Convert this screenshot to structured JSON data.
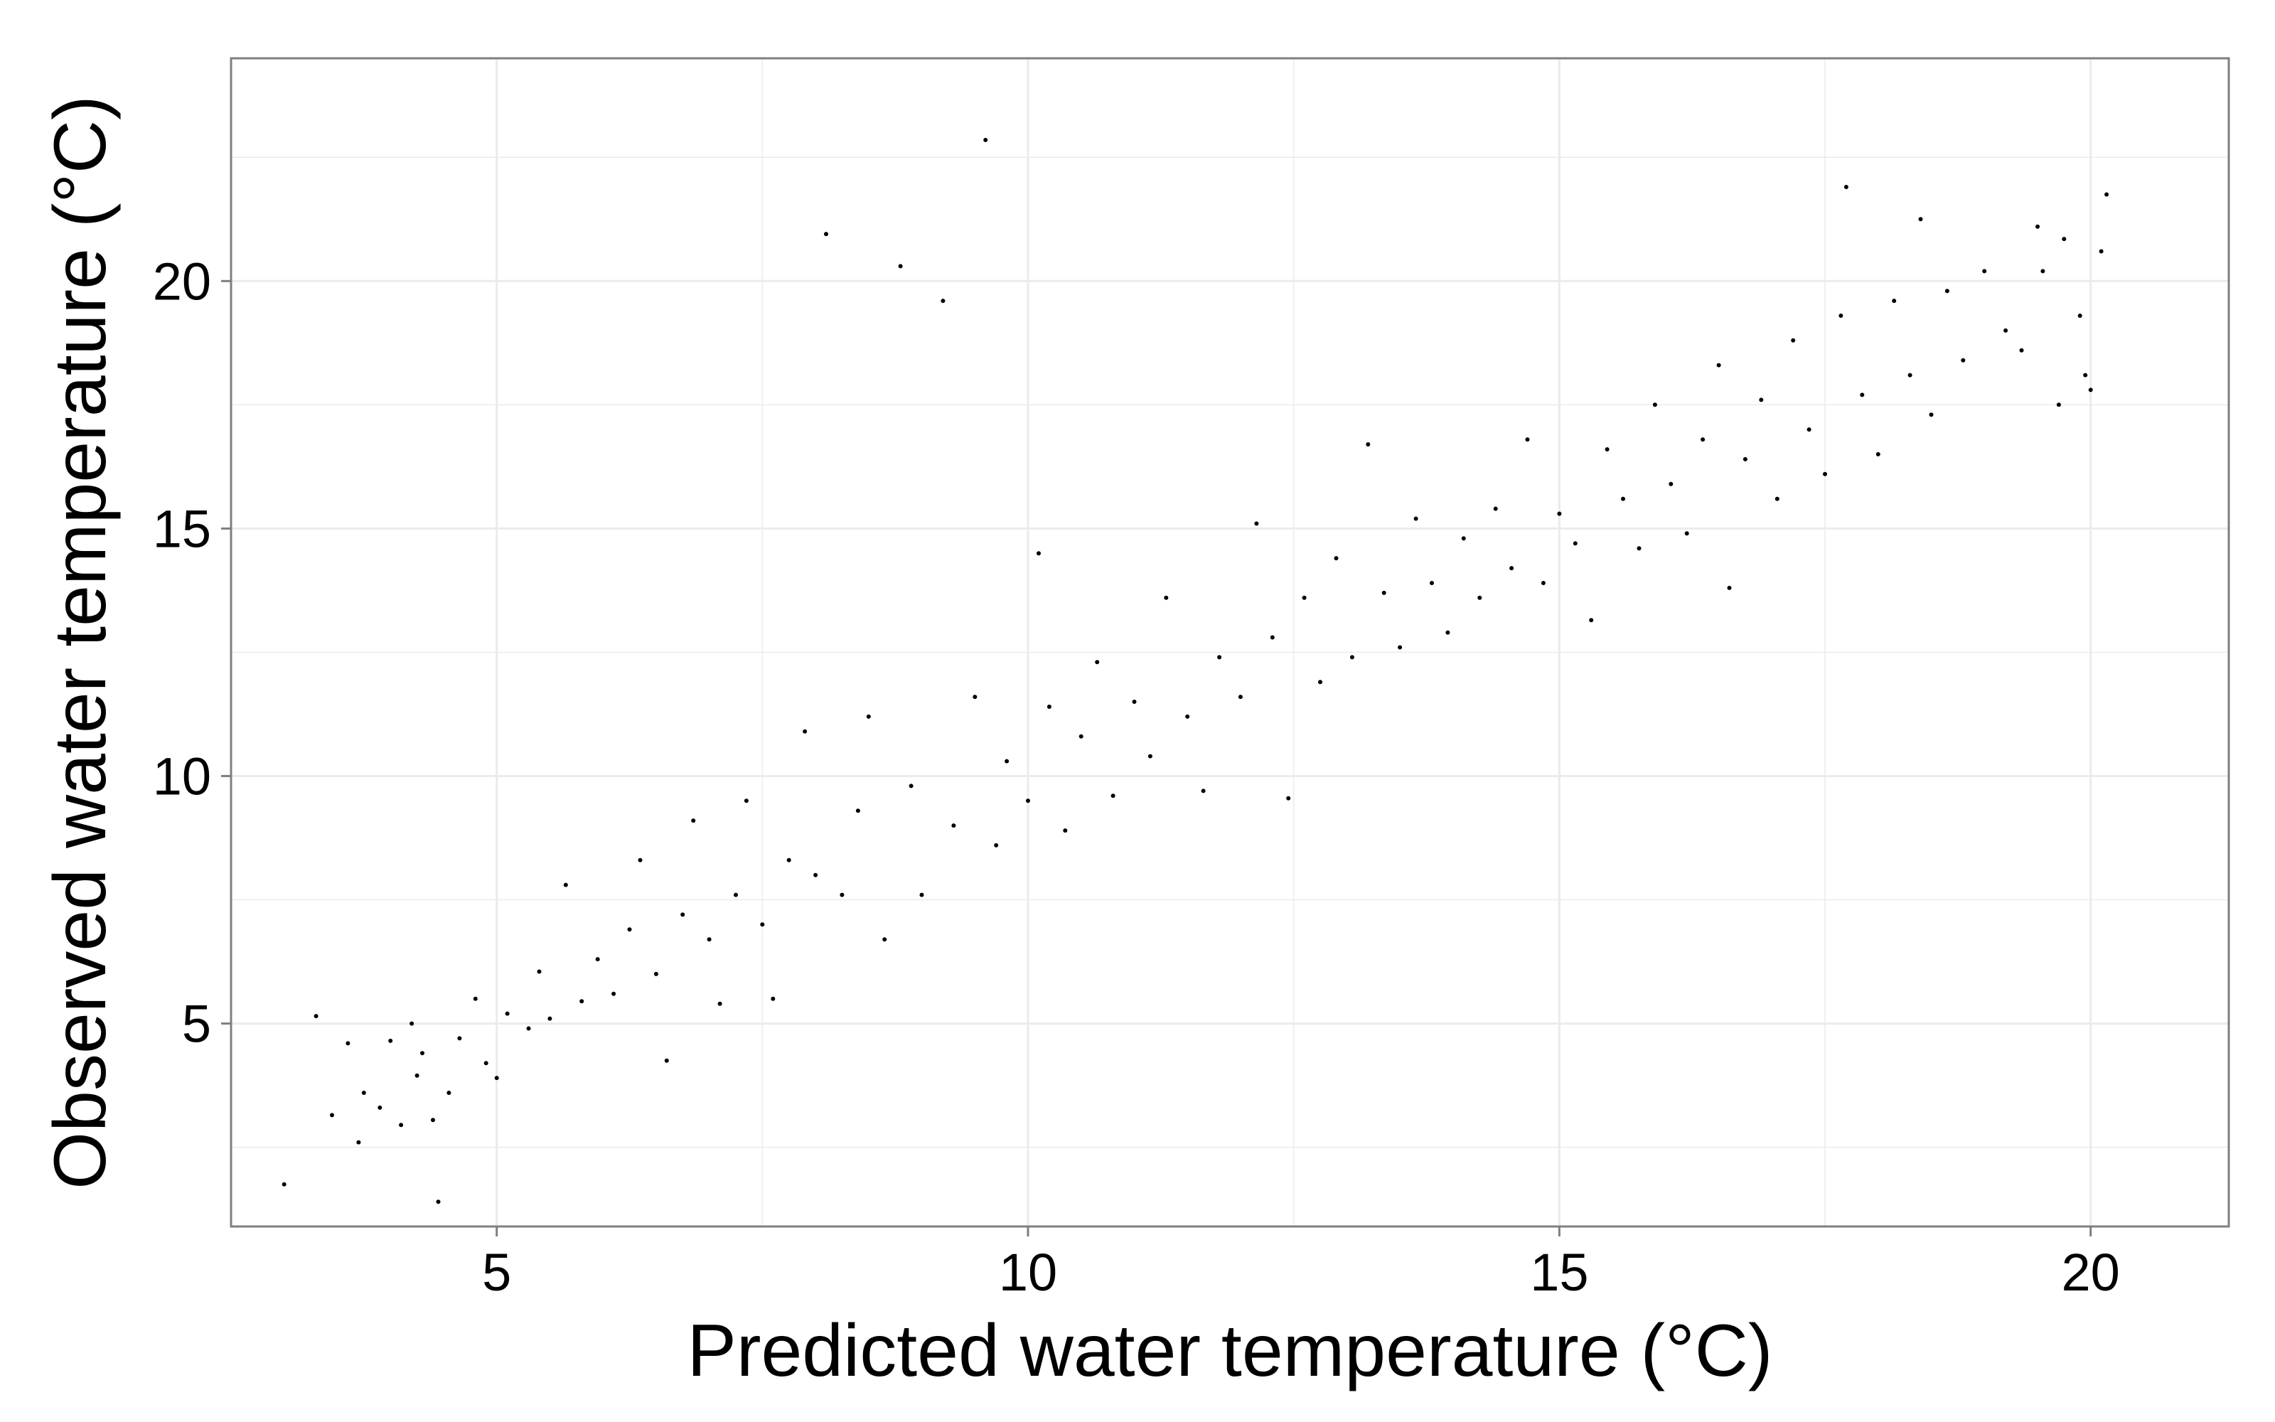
{
  "chart_data": {
    "type": "scatter",
    "title": "",
    "xlabel": "Predicted water temperature (°C)",
    "ylabel": "Observed water temperature (°C)",
    "xlim": [
      2.5,
      21.3
    ],
    "ylim": [
      0.9,
      24.5
    ],
    "x_ticks": [
      5,
      10,
      15,
      20
    ],
    "y_ticks": [
      5,
      10,
      15,
      20
    ],
    "x_tick_labels": [
      "5",
      "10",
      "15",
      "20"
    ],
    "y_tick_labels": [
      "5",
      "10",
      "15",
      "20"
    ],
    "grid": true,
    "legend": "none",
    "colors": {
      "points": "#000000",
      "panel_border": "#7f7f7f",
      "grid": "#ebebeb"
    },
    "series": [
      {
        "points": [
          [
            3.0,
            1.75
          ],
          [
            3.3,
            5.15
          ],
          [
            3.45,
            3.15
          ],
          [
            3.6,
            4.6
          ],
          [
            3.7,
            2.6
          ],
          [
            3.75,
            3.6
          ],
          [
            3.9,
            3.3
          ],
          [
            4.0,
            4.65
          ],
          [
            4.1,
            2.95
          ],
          [
            4.2,
            5.0
          ],
          [
            4.25,
            3.95
          ],
          [
            4.3,
            4.4
          ],
          [
            4.4,
            3.05
          ],
          [
            4.45,
            1.4
          ],
          [
            4.55,
            3.6
          ],
          [
            4.65,
            4.7
          ],
          [
            4.8,
            5.5
          ],
          [
            4.9,
            4.2
          ],
          [
            5.0,
            3.9
          ],
          [
            5.1,
            5.2
          ],
          [
            5.3,
            4.9
          ],
          [
            5.4,
            6.05
          ],
          [
            5.5,
            5.1
          ],
          [
            5.65,
            7.8
          ],
          [
            5.8,
            5.45
          ],
          [
            5.95,
            6.3
          ],
          [
            6.1,
            5.6
          ],
          [
            6.25,
            6.9
          ],
          [
            6.35,
            8.3
          ],
          [
            6.5,
            6.0
          ],
          [
            6.6,
            4.25
          ],
          [
            6.75,
            7.2
          ],
          [
            6.85,
            9.1
          ],
          [
            7.0,
            6.7
          ],
          [
            7.1,
            5.4
          ],
          [
            7.25,
            7.6
          ],
          [
            7.35,
            9.5
          ],
          [
            7.5,
            7.0
          ],
          [
            7.6,
            5.5
          ],
          [
            7.75,
            8.3
          ],
          [
            7.9,
            10.9
          ],
          [
            8.0,
            8.0
          ],
          [
            8.1,
            20.95
          ],
          [
            8.25,
            7.6
          ],
          [
            8.4,
            9.3
          ],
          [
            8.5,
            11.2
          ],
          [
            8.65,
            6.7
          ],
          [
            8.8,
            20.3
          ],
          [
            8.9,
            9.8
          ],
          [
            9.0,
            7.6
          ],
          [
            9.2,
            19.6
          ],
          [
            9.3,
            9.0
          ],
          [
            9.5,
            11.6
          ],
          [
            9.6,
            22.85
          ],
          [
            9.7,
            8.6
          ],
          [
            9.8,
            10.3
          ],
          [
            10.0,
            9.5
          ],
          [
            10.1,
            14.5
          ],
          [
            10.2,
            11.4
          ],
          [
            10.35,
            8.9
          ],
          [
            10.5,
            10.8
          ],
          [
            10.65,
            12.3
          ],
          [
            10.8,
            9.6
          ],
          [
            11.0,
            11.5
          ],
          [
            11.15,
            10.4
          ],
          [
            11.3,
            13.6
          ],
          [
            11.5,
            11.2
          ],
          [
            11.65,
            9.7
          ],
          [
            11.8,
            12.4
          ],
          [
            12.0,
            11.6
          ],
          [
            12.15,
            15.1
          ],
          [
            12.3,
            12.8
          ],
          [
            12.45,
            9.55
          ],
          [
            12.6,
            13.6
          ],
          [
            12.75,
            11.9
          ],
          [
            12.9,
            14.4
          ],
          [
            13.05,
            12.4
          ],
          [
            13.2,
            16.7
          ],
          [
            13.35,
            13.7
          ],
          [
            13.5,
            12.6
          ],
          [
            13.65,
            15.2
          ],
          [
            13.8,
            13.9
          ],
          [
            13.95,
            12.9
          ],
          [
            14.1,
            14.8
          ],
          [
            14.25,
            13.6
          ],
          [
            14.4,
            15.4
          ],
          [
            14.55,
            14.2
          ],
          [
            14.7,
            16.8
          ],
          [
            14.85,
            13.9
          ],
          [
            15.0,
            15.3
          ],
          [
            15.15,
            14.7
          ],
          [
            15.3,
            13.15
          ],
          [
            15.45,
            16.6
          ],
          [
            15.6,
            15.6
          ],
          [
            15.75,
            14.6
          ],
          [
            15.9,
            17.5
          ],
          [
            16.05,
            15.9
          ],
          [
            16.2,
            14.9
          ],
          [
            16.35,
            16.8
          ],
          [
            16.5,
            18.3
          ],
          [
            16.6,
            13.8
          ],
          [
            16.75,
            16.4
          ],
          [
            16.9,
            17.6
          ],
          [
            17.05,
            15.6
          ],
          [
            17.2,
            18.8
          ],
          [
            17.35,
            17.0
          ],
          [
            17.5,
            16.1
          ],
          [
            17.65,
            19.3
          ],
          [
            17.7,
            21.9
          ],
          [
            17.85,
            17.7
          ],
          [
            18.0,
            16.5
          ],
          [
            18.15,
            19.6
          ],
          [
            18.3,
            18.1
          ],
          [
            18.4,
            21.25
          ],
          [
            18.5,
            17.3
          ],
          [
            18.65,
            19.8
          ],
          [
            18.8,
            18.4
          ],
          [
            19.0,
            20.2
          ],
          [
            19.2,
            19.0
          ],
          [
            19.35,
            18.6
          ],
          [
            19.5,
            21.1
          ],
          [
            19.55,
            20.2
          ],
          [
            19.7,
            17.5
          ],
          [
            19.75,
            20.85
          ],
          [
            19.9,
            19.3
          ],
          [
            19.95,
            18.1
          ],
          [
            20.0,
            17.8
          ],
          [
            20.1,
            20.6
          ],
          [
            20.15,
            21.75
          ]
        ]
      }
    ]
  }
}
